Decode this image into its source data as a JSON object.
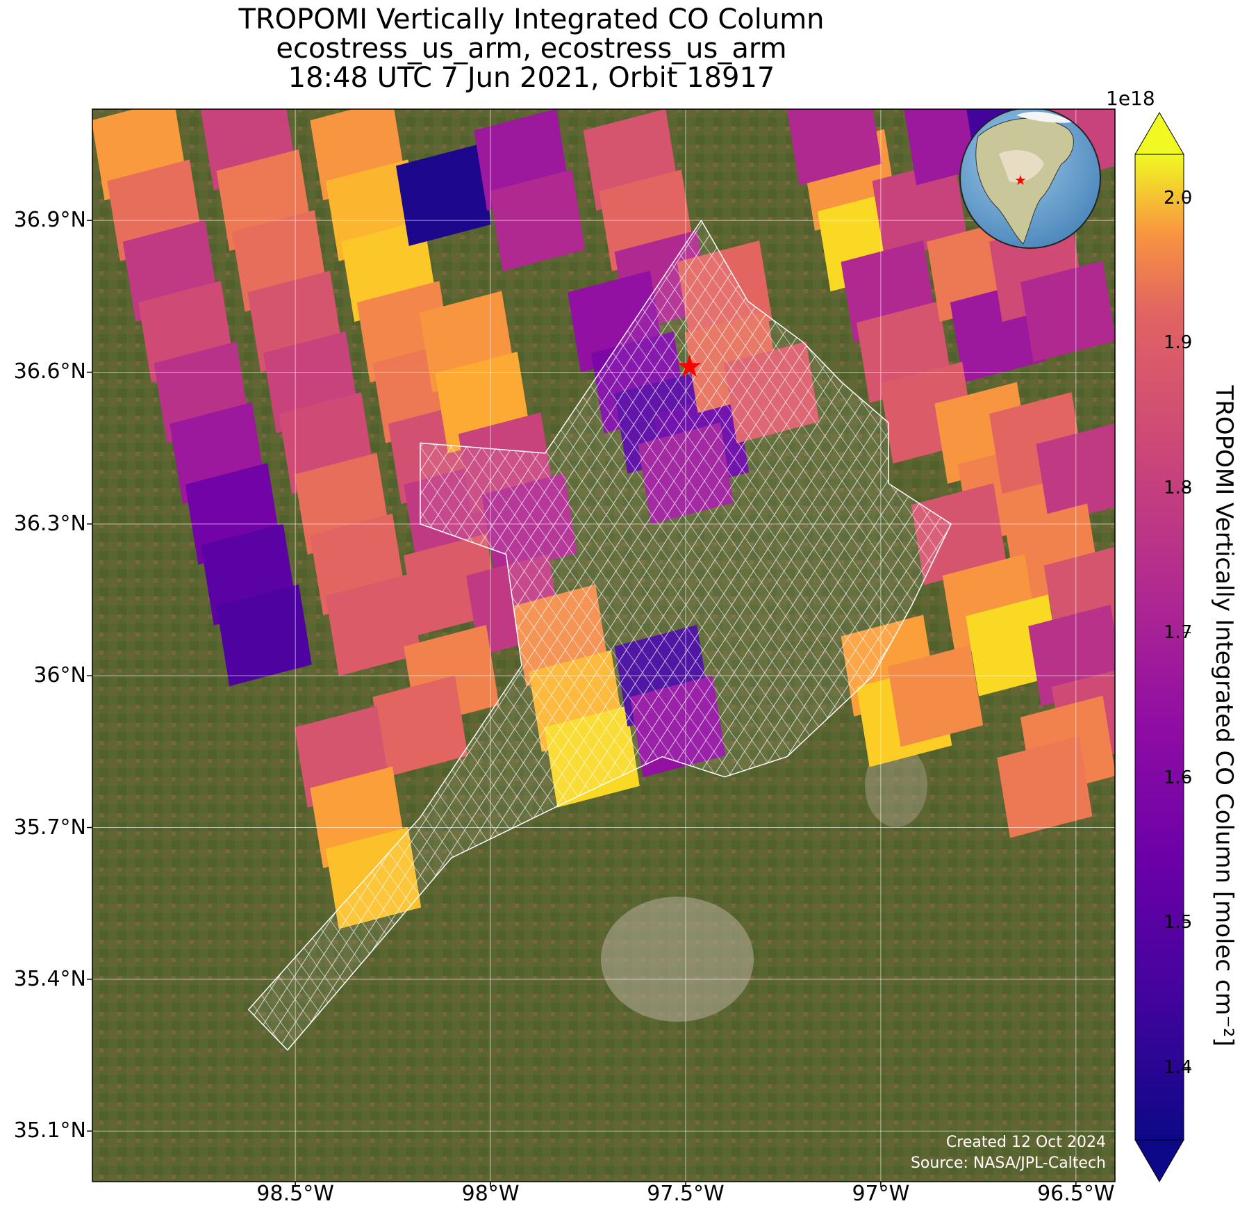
{
  "title": {
    "line1": "TROPOMI Vertically Integrated CO Column",
    "line2": "ecostress_us_arm, ecostress_us_arm",
    "line3": "18:48 UTC 7 Jun 2021, Orbit 18917"
  },
  "map": {
    "extent": {
      "lon_min": -99.02,
      "lon_max": -96.4,
      "lat_min": 35.0,
      "lat_max": 37.12
    },
    "lat_ticks": [
      {
        "value": 36.9,
        "label": "36.9°N"
      },
      {
        "value": 36.6,
        "label": "36.6°N"
      },
      {
        "value": 36.3,
        "label": "36.3°N"
      },
      {
        "value": 36.0,
        "label": "36°N"
      },
      {
        "value": 35.7,
        "label": "35.7°N"
      },
      {
        "value": 35.4,
        "label": "35.4°N"
      },
      {
        "value": 35.1,
        "label": "35.1°N"
      }
    ],
    "lon_ticks": [
      {
        "value": -98.5,
        "label": "98.5°W"
      },
      {
        "value": -98.0,
        "label": "98°W"
      },
      {
        "value": -97.5,
        "label": "97.5°W"
      },
      {
        "value": -97.0,
        "label": "97°W"
      },
      {
        "value": -96.5,
        "label": "96.5°W"
      }
    ],
    "gridlines": true,
    "basemap": "satellite imagery",
    "site_marker": {
      "lon": -97.49,
      "lat": 36.61,
      "symbol": "star",
      "color": "#ff0000"
    },
    "inset_globe": {
      "position": "top-right",
      "marker_color": "#ff0000"
    }
  },
  "chart_data": {
    "type": "heatmap",
    "title": "TROPOMI Vertically Integrated CO Column",
    "colormap": "plasma",
    "vmin": 1.35,
    "vmax": 2.03,
    "scale_multiplier_label": "1e18",
    "colorbar_label": "TROPOMI Vertically Integrated CO Column [molec cm⁻²]",
    "colorbar_ticks": [
      1.4,
      1.5,
      1.6,
      1.7,
      1.8,
      1.9,
      2.0
    ],
    "colorbar_extend": "both",
    "pixels": [
      {
        "lon": -98.9,
        "lat": 37.04,
        "value": 1.87
      },
      {
        "lon": -98.86,
        "lat": 36.92,
        "value": 1.78
      },
      {
        "lon": -98.82,
        "lat": 36.8,
        "value": 1.66
      },
      {
        "lon": -98.78,
        "lat": 36.68,
        "value": 1.7
      },
      {
        "lon": -98.74,
        "lat": 36.56,
        "value": 1.64
      },
      {
        "lon": -98.7,
        "lat": 36.44,
        "value": 1.58
      },
      {
        "lon": -98.66,
        "lat": 36.32,
        "value": 1.5
      },
      {
        "lon": -98.62,
        "lat": 36.2,
        "value": 1.46
      },
      {
        "lon": -98.58,
        "lat": 36.08,
        "value": 1.44
      },
      {
        "lon": -98.62,
        "lat": 37.06,
        "value": 1.68
      },
      {
        "lon": -98.58,
        "lat": 36.94,
        "value": 1.8
      },
      {
        "lon": -98.54,
        "lat": 36.82,
        "value": 1.78
      },
      {
        "lon": -98.5,
        "lat": 36.7,
        "value": 1.72
      },
      {
        "lon": -98.46,
        "lat": 36.58,
        "value": 1.68
      },
      {
        "lon": -98.42,
        "lat": 36.46,
        "value": 1.7
      },
      {
        "lon": -98.38,
        "lat": 36.34,
        "value": 1.78
      },
      {
        "lon": -98.34,
        "lat": 36.22,
        "value": 1.76
      },
      {
        "lon": -98.3,
        "lat": 36.1,
        "value": 1.74
      },
      {
        "lon": -98.34,
        "lat": 37.04,
        "value": 1.86
      },
      {
        "lon": -98.3,
        "lat": 36.92,
        "value": 1.92
      },
      {
        "lon": -98.26,
        "lat": 36.8,
        "value": 1.95
      },
      {
        "lon": -98.22,
        "lat": 36.68,
        "value": 1.83
      },
      {
        "lon": -98.18,
        "lat": 36.56,
        "value": 1.8
      },
      {
        "lon": -98.14,
        "lat": 36.44,
        "value": 1.71
      },
      {
        "lon": -98.1,
        "lat": 36.32,
        "value": 1.66
      },
      {
        "lon": -98.06,
        "lat": 36.66,
        "value": 1.86
      },
      {
        "lon": -98.02,
        "lat": 36.54,
        "value": 1.9
      },
      {
        "lon": -98.12,
        "lat": 36.95,
        "value": 1.37
      },
      {
        "lon": -97.92,
        "lat": 37.02,
        "value": 1.58
      },
      {
        "lon": -97.88,
        "lat": 36.9,
        "value": 1.62
      },
      {
        "lon": -97.64,
        "lat": 37.02,
        "value": 1.72
      },
      {
        "lon": -97.6,
        "lat": 36.9,
        "value": 1.76
      },
      {
        "lon": -97.56,
        "lat": 36.78,
        "value": 1.62
      },
      {
        "lon": -97.68,
        "lat": 36.7,
        "value": 1.56
      },
      {
        "lon": -97.62,
        "lat": 36.58,
        "value": 1.52
      },
      {
        "lon": -97.56,
        "lat": 36.5,
        "value": 1.45
      },
      {
        "lon": -97.46,
        "lat": 36.46,
        "value": 1.48
      },
      {
        "lon": -97.4,
        "lat": 36.76,
        "value": 1.76
      },
      {
        "lon": -97.38,
        "lat": 36.62,
        "value": 1.78
      },
      {
        "lon": -97.28,
        "lat": 36.56,
        "value": 1.74
      },
      {
        "lon": -97.5,
        "lat": 36.4,
        "value": 1.58
      },
      {
        "lon": -97.96,
        "lat": 36.42,
        "value": 1.68
      },
      {
        "lon": -97.9,
        "lat": 36.3,
        "value": 1.62
      },
      {
        "lon": -98.1,
        "lat": 36.18,
        "value": 1.74
      },
      {
        "lon": -97.94,
        "lat": 36.14,
        "value": 1.66
      },
      {
        "lon": -97.82,
        "lat": 36.08,
        "value": 1.84
      },
      {
        "lon": -97.78,
        "lat": 35.95,
        "value": 1.92
      },
      {
        "lon": -97.74,
        "lat": 35.84,
        "value": 1.98
      },
      {
        "lon": -97.56,
        "lat": 36.0,
        "value": 1.42
      },
      {
        "lon": -97.52,
        "lat": 35.9,
        "value": 1.56
      },
      {
        "lon": -98.1,
        "lat": 36.0,
        "value": 1.82
      },
      {
        "lon": -98.18,
        "lat": 35.9,
        "value": 1.76
      },
      {
        "lon": -98.38,
        "lat": 35.84,
        "value": 1.72
      },
      {
        "lon": -98.34,
        "lat": 35.72,
        "value": 1.88
      },
      {
        "lon": -98.3,
        "lat": 35.6,
        "value": 1.94
      },
      {
        "lon": -97.08,
        "lat": 36.98,
        "value": 1.86
      },
      {
        "lon": -97.04,
        "lat": 36.86,
        "value": 1.98
      },
      {
        "lon": -96.9,
        "lat": 36.92,
        "value": 1.68
      },
      {
        "lon": -96.98,
        "lat": 36.76,
        "value": 1.62
      },
      {
        "lon": -96.94,
        "lat": 36.64,
        "value": 1.72
      },
      {
        "lon": -96.76,
        "lat": 36.8,
        "value": 1.8
      },
      {
        "lon": -96.7,
        "lat": 36.68,
        "value": 1.58
      },
      {
        "lon": -96.6,
        "lat": 36.8,
        "value": 1.7
      },
      {
        "lon": -96.52,
        "lat": 36.72,
        "value": 1.62
      },
      {
        "lon": -96.88,
        "lat": 36.52,
        "value": 1.74
      },
      {
        "lon": -96.74,
        "lat": 36.48,
        "value": 1.86
      },
      {
        "lon": -96.68,
        "lat": 36.36,
        "value": 1.82
      },
      {
        "lon": -96.6,
        "lat": 36.46,
        "value": 1.76
      },
      {
        "lon": -96.48,
        "lat": 36.4,
        "value": 1.66
      },
      {
        "lon": -96.8,
        "lat": 36.28,
        "value": 1.72
      },
      {
        "lon": -96.56,
        "lat": 36.24,
        "value": 1.82
      },
      {
        "lon": -96.46,
        "lat": 36.16,
        "value": 1.72
      },
      {
        "lon": -96.72,
        "lat": 36.14,
        "value": 1.86
      },
      {
        "lon": -96.66,
        "lat": 36.06,
        "value": 1.98
      },
      {
        "lon": -96.5,
        "lat": 36.04,
        "value": 1.64
      },
      {
        "lon": -96.44,
        "lat": 35.92,
        "value": 1.7
      },
      {
        "lon": -96.52,
        "lat": 35.86,
        "value": 1.82
      },
      {
        "lon": -96.58,
        "lat": 35.78,
        "value": 1.8
      },
      {
        "lon": -96.98,
        "lat": 36.02,
        "value": 1.88
      },
      {
        "lon": -96.94,
        "lat": 35.92,
        "value": 1.96
      },
      {
        "lon": -96.86,
        "lat": 35.96,
        "value": 1.84
      },
      {
        "lon": -97.12,
        "lat": 37.07,
        "value": 1.62
      },
      {
        "lon": -96.82,
        "lat": 37.07,
        "value": 1.58
      },
      {
        "lon": -96.66,
        "lat": 37.07,
        "value": 1.42
      },
      {
        "lon": -96.5,
        "lat": 37.07,
        "value": 1.68
      }
    ],
    "swath_bounds": [
      [
        -98.62,
        35.34
      ],
      [
        -98.18,
        35.72
      ],
      [
        -97.92,
        36.02
      ],
      [
        -97.96,
        36.24
      ],
      [
        -98.18,
        36.3
      ],
      [
        -98.18,
        36.46
      ],
      [
        -97.86,
        36.44
      ],
      [
        -97.72,
        36.6
      ],
      [
        -97.46,
        36.9
      ],
      [
        -97.34,
        36.74
      ],
      [
        -97.2,
        36.66
      ],
      [
        -97.1,
        36.58
      ],
      [
        -96.98,
        36.5
      ],
      [
        -96.98,
        36.38
      ],
      [
        -96.82,
        36.3
      ],
      [
        -96.92,
        36.14
      ],
      [
        -97.02,
        36.0
      ],
      [
        -97.24,
        35.84
      ],
      [
        -97.4,
        35.8
      ],
      [
        -97.56,
        35.84
      ],
      [
        -97.78,
        35.76
      ],
      [
        -98.1,
        35.64
      ],
      [
        -98.52,
        35.26
      ]
    ]
  },
  "credits": {
    "created": "Created 12 Oct 2024",
    "source": "Source: NASA/JPL-Caltech"
  }
}
